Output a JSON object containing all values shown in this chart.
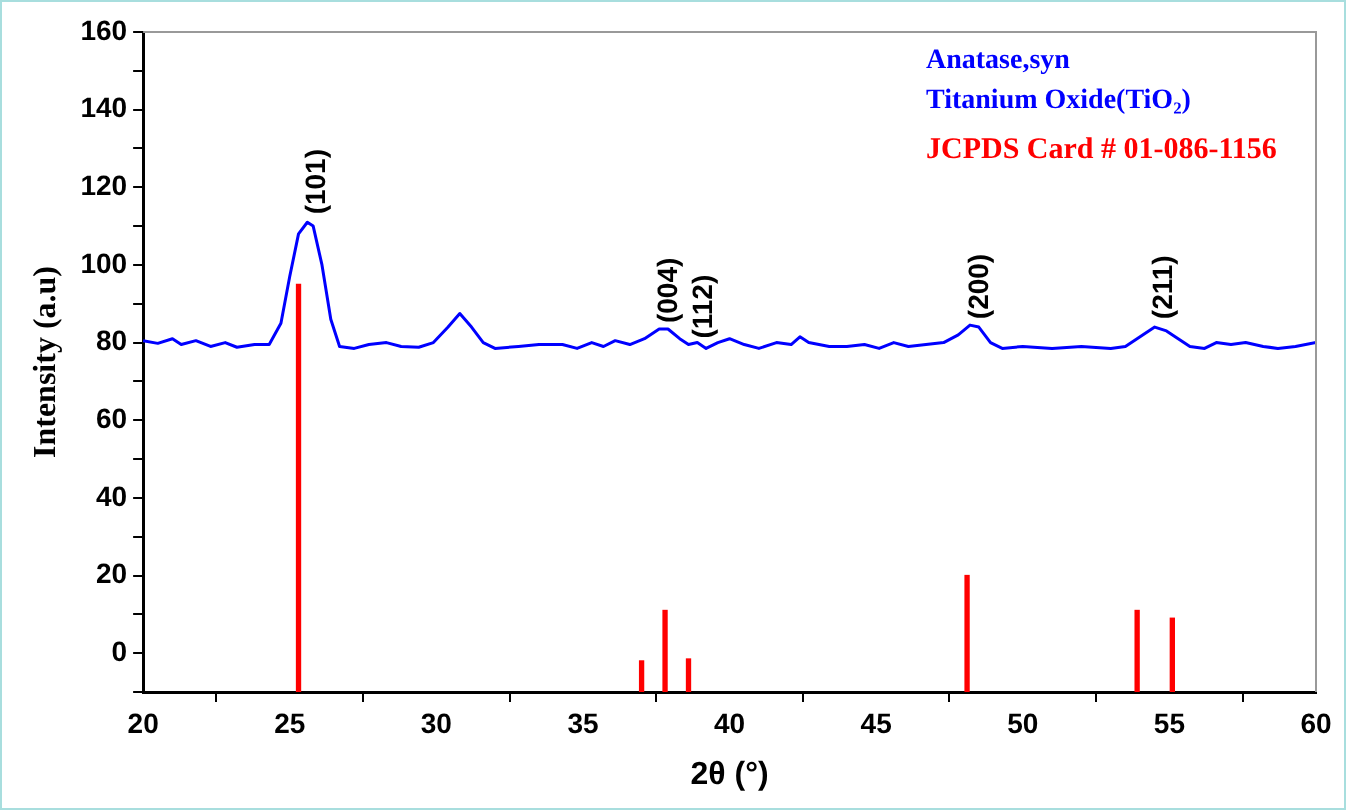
{
  "chart_data": {
    "type": "line",
    "xlabel": "2θ (°)",
    "ylabel": "Intensity (a.u)",
    "xlim": [
      20,
      60
    ],
    "xticks": [
      20,
      25,
      30,
      35,
      40,
      45,
      50,
      55,
      60
    ],
    "ylim": [
      -10,
      160
    ],
    "yticks": [
      {
        "value": -10,
        "label": null
      },
      0,
      {
        "value": 10,
        "label": null
      },
      20,
      {
        "value": 30,
        "label": null
      },
      40,
      {
        "value": 50,
        "label": null
      },
      60,
      {
        "value": 70,
        "label": null
      },
      80,
      {
        "value": 90,
        "label": null
      },
      100,
      {
        "value": 110,
        "label": null
      },
      120,
      {
        "value": 130,
        "label": null
      },
      140,
      {
        "value": 150,
        "label": null
      },
      160
    ],
    "grid": false,
    "legend": "top right",
    "marker": "none",
    "line_style": "solid",
    "series": [
      {
        "name": "Anatase,syn",
        "color": "#0000ff",
        "x": [
          20,
          20.5,
          21,
          21.3,
          21.8,
          22.3,
          22.8,
          23.2,
          23.8,
          24.3,
          24.7,
          25.0,
          25.3,
          25.6,
          25.8,
          26.1,
          26.4,
          26.7,
          27.2,
          27.7,
          28.3,
          28.8,
          29.4,
          29.9,
          30.4,
          30.8,
          31.2,
          31.6,
          32,
          32.8,
          33.5,
          34.3,
          34.8,
          35.3,
          35.7,
          36.1,
          36.6,
          37.1,
          37.6,
          37.9,
          38.3,
          38.6,
          38.9,
          39.2,
          39.6,
          40,
          40.5,
          41,
          41.6,
          42.1,
          42.4,
          42.7,
          43.4,
          44,
          44.6,
          45.1,
          45.6,
          46.1,
          46.7,
          47.3,
          47.8,
          48.2,
          48.5,
          48.9,
          49.3,
          50,
          51,
          52,
          53,
          53.5,
          54,
          54.5,
          54.9,
          55.3,
          55.7,
          56.2,
          56.6,
          57.1,
          57.6,
          58.2,
          58.7,
          59.3,
          60
        ],
        "values": [
          80.5,
          79.8,
          81,
          79.5,
          80.5,
          79,
          80,
          78.8,
          79.5,
          79.5,
          85,
          97,
          108,
          111,
          110,
          100,
          86,
          79,
          78.5,
          79.5,
          80,
          79,
          78.8,
          80,
          84,
          87.5,
          84,
          80,
          78.5,
          79,
          79.5,
          79.5,
          78.5,
          80,
          79,
          80.5,
          79.5,
          81,
          83.5,
          83.5,
          81,
          79.5,
          80,
          78.5,
          80,
          81,
          79.5,
          78.5,
          80,
          79.5,
          81.5,
          80,
          79,
          79,
          79.5,
          78.5,
          80,
          79,
          79.5,
          80,
          82,
          84.5,
          84,
          80,
          78.5,
          79,
          78.5,
          79,
          78.5,
          79,
          81.5,
          84,
          83,
          81,
          79,
          78.5,
          80,
          79.5,
          80,
          79,
          78.5,
          79,
          80
        ]
      },
      {
        "name": "JCPDS Card # 01-086-1156",
        "type": "bar",
        "color": "#ff0000",
        "x": [
          25.3,
          37.0,
          37.8,
          38.6,
          48.1,
          53.9,
          55.1
        ],
        "base": [
          -10,
          -10,
          -10,
          -10,
          -10,
          -10,
          -10
        ],
        "values": [
          105,
          8,
          21,
          8.5,
          30,
          21,
          19
        ]
      }
    ],
    "annotations": [
      "Titanium Oxide(TiO₂)",
      {
        "text": "(101)",
        "x": 25.6,
        "y": 112
      },
      {
        "text": "(004)",
        "x": 37.6,
        "y": 84
      },
      {
        "text": "(112)",
        "x": 38.8,
        "y": 80
      },
      {
        "text": "(200)",
        "x": 48.2,
        "y": 85
      },
      {
        "text": "(211)",
        "x": 54.5,
        "y": 85
      }
    ]
  }
}
